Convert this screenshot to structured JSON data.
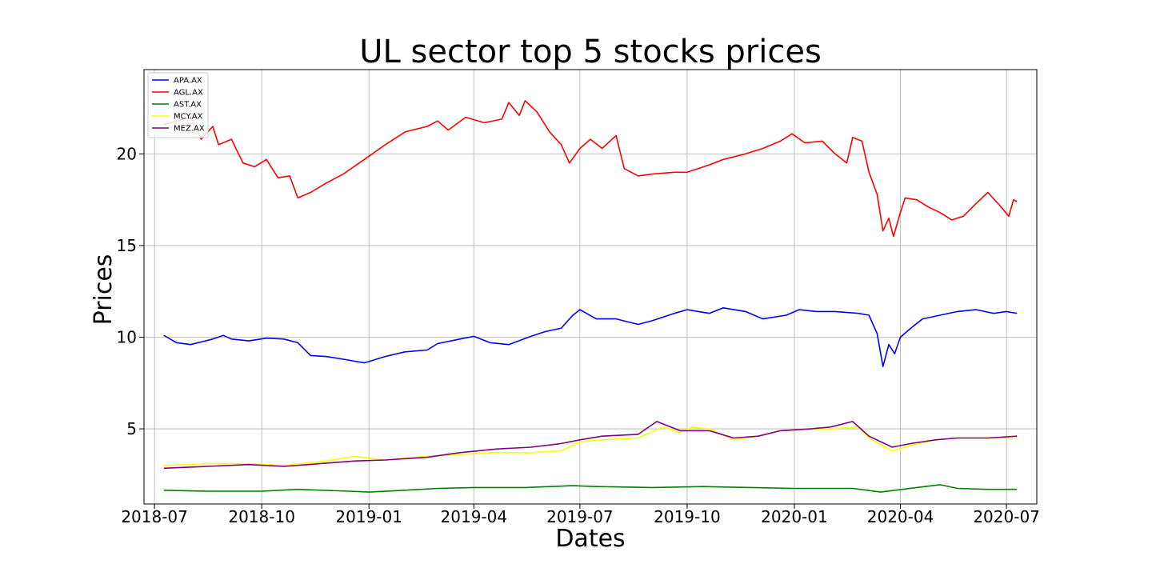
{
  "chart_data": {
    "type": "line",
    "title": "UL sector top 5 stocks prices",
    "xlabel": "Dates",
    "ylabel": "Prices",
    "xlim": [
      "2018-06-22",
      "2020-07-27"
    ],
    "ylim": [
      0.9,
      24.6
    ],
    "grid": true,
    "legend_position": "top-left",
    "x_ticks": [
      "2018-07",
      "2018-10",
      "2019-01",
      "2019-04",
      "2019-07",
      "2019-10",
      "2020-01",
      "2020-04",
      "2020-07"
    ],
    "y_ticks": [
      "5",
      "10",
      "15",
      "20"
    ],
    "series": [
      {
        "name": "APA.AX",
        "color": "#0000ff",
        "points": [
          [
            "2018-07-09",
            10.1
          ],
          [
            "2018-07-20",
            9.7
          ],
          [
            "2018-08-01",
            9.6
          ],
          [
            "2018-08-20",
            9.9
          ],
          [
            "2018-08-29",
            10.1
          ],
          [
            "2018-09-05",
            9.9
          ],
          [
            "2018-09-20",
            9.8
          ],
          [
            "2018-10-05",
            9.95
          ],
          [
            "2018-10-20",
            9.9
          ],
          [
            "2018-11-01",
            9.7
          ],
          [
            "2018-11-12",
            9.0
          ],
          [
            "2018-11-25",
            8.95
          ],
          [
            "2018-12-10",
            8.8
          ],
          [
            "2018-12-28",
            8.6
          ],
          [
            "2019-01-15",
            8.95
          ],
          [
            "2019-02-01",
            9.2
          ],
          [
            "2019-02-20",
            9.3
          ],
          [
            "2019-03-01",
            9.65
          ],
          [
            "2019-03-20",
            9.9
          ],
          [
            "2019-04-01",
            10.05
          ],
          [
            "2019-04-15",
            9.7
          ],
          [
            "2019-05-01",
            9.6
          ],
          [
            "2019-05-20",
            10.05
          ],
          [
            "2019-06-01",
            10.3
          ],
          [
            "2019-06-15",
            10.5
          ],
          [
            "2019-06-25",
            11.2
          ],
          [
            "2019-07-01",
            11.5
          ],
          [
            "2019-07-15",
            11.0
          ],
          [
            "2019-08-01",
            11.0
          ],
          [
            "2019-08-20",
            10.7
          ],
          [
            "2019-09-01",
            10.9
          ],
          [
            "2019-09-20",
            11.3
          ],
          [
            "2019-10-01",
            11.5
          ],
          [
            "2019-10-20",
            11.3
          ],
          [
            "2019-11-01",
            11.6
          ],
          [
            "2019-11-20",
            11.4
          ],
          [
            "2019-12-05",
            11.0
          ],
          [
            "2019-12-25",
            11.2
          ],
          [
            "2020-01-05",
            11.5
          ],
          [
            "2020-01-20",
            11.4
          ],
          [
            "2020-02-05",
            11.4
          ],
          [
            "2020-02-25",
            11.3
          ],
          [
            "2020-03-05",
            11.2
          ],
          [
            "2020-03-12",
            10.2
          ],
          [
            "2020-03-17",
            8.4
          ],
          [
            "2020-03-22",
            9.6
          ],
          [
            "2020-03-27",
            9.1
          ],
          [
            "2020-04-01",
            10.0
          ],
          [
            "2020-04-10",
            10.5
          ],
          [
            "2020-04-20",
            11.0
          ],
          [
            "2020-05-05",
            11.2
          ],
          [
            "2020-05-20",
            11.4
          ],
          [
            "2020-06-05",
            11.5
          ],
          [
            "2020-06-20",
            11.3
          ],
          [
            "2020-07-01",
            11.4
          ],
          [
            "2020-07-10",
            11.3
          ]
        ]
      },
      {
        "name": "AGL.AX",
        "color": "#ff0000",
        "points": [
          [
            "2018-07-09",
            21.6
          ],
          [
            "2018-07-20",
            21.8
          ],
          [
            "2018-08-01",
            22.0
          ],
          [
            "2018-08-10",
            20.8
          ],
          [
            "2018-08-20",
            21.5
          ],
          [
            "2018-08-25",
            20.5
          ],
          [
            "2018-09-05",
            20.8
          ],
          [
            "2018-09-15",
            19.5
          ],
          [
            "2018-09-25",
            19.3
          ],
          [
            "2018-10-05",
            19.7
          ],
          [
            "2018-10-15",
            18.7
          ],
          [
            "2018-10-25",
            18.8
          ],
          [
            "2018-11-01",
            17.6
          ],
          [
            "2018-11-12",
            17.9
          ],
          [
            "2018-11-25",
            18.4
          ],
          [
            "2018-12-10",
            18.9
          ],
          [
            "2018-12-28",
            19.7
          ],
          [
            "2019-01-15",
            20.5
          ],
          [
            "2019-02-01",
            21.2
          ],
          [
            "2019-02-20",
            21.5
          ],
          [
            "2019-03-01",
            21.8
          ],
          [
            "2019-03-10",
            21.3
          ],
          [
            "2019-03-25",
            22.0
          ],
          [
            "2019-04-10",
            21.7
          ],
          [
            "2019-04-25",
            21.9
          ],
          [
            "2019-05-01",
            22.8
          ],
          [
            "2019-05-10",
            22.1
          ],
          [
            "2019-05-15",
            22.9
          ],
          [
            "2019-05-25",
            22.3
          ],
          [
            "2019-06-05",
            21.2
          ],
          [
            "2019-06-15",
            20.5
          ],
          [
            "2019-06-22",
            19.5
          ],
          [
            "2019-07-01",
            20.3
          ],
          [
            "2019-07-10",
            20.8
          ],
          [
            "2019-07-20",
            20.3
          ],
          [
            "2019-08-01",
            21.0
          ],
          [
            "2019-08-08",
            19.2
          ],
          [
            "2019-08-20",
            18.8
          ],
          [
            "2019-09-01",
            18.9
          ],
          [
            "2019-09-20",
            19.0
          ],
          [
            "2019-10-01",
            19.0
          ],
          [
            "2019-10-20",
            19.4
          ],
          [
            "2019-11-01",
            19.7
          ],
          [
            "2019-11-20",
            20.0
          ],
          [
            "2019-12-05",
            20.3
          ],
          [
            "2019-12-20",
            20.7
          ],
          [
            "2019-12-30",
            21.1
          ],
          [
            "2020-01-10",
            20.6
          ],
          [
            "2020-01-25",
            20.7
          ],
          [
            "2020-02-05",
            20.0
          ],
          [
            "2020-02-15",
            19.5
          ],
          [
            "2020-02-20",
            20.9
          ],
          [
            "2020-02-28",
            20.7
          ],
          [
            "2020-03-05",
            19.0
          ],
          [
            "2020-03-12",
            17.8
          ],
          [
            "2020-03-17",
            15.8
          ],
          [
            "2020-03-22",
            16.5
          ],
          [
            "2020-03-26",
            15.5
          ],
          [
            "2020-04-01",
            16.8
          ],
          [
            "2020-04-05",
            17.6
          ],
          [
            "2020-04-15",
            17.5
          ],
          [
            "2020-04-25",
            17.1
          ],
          [
            "2020-05-05",
            16.8
          ],
          [
            "2020-05-15",
            16.4
          ],
          [
            "2020-05-25",
            16.6
          ],
          [
            "2020-06-05",
            17.3
          ],
          [
            "2020-06-15",
            17.9
          ],
          [
            "2020-06-25",
            17.2
          ],
          [
            "2020-07-03",
            16.6
          ],
          [
            "2020-07-07",
            17.5
          ],
          [
            "2020-07-10",
            17.4
          ]
        ]
      },
      {
        "name": "AST.AX",
        "color": "#008000",
        "points": [
          [
            "2018-07-09",
            1.65
          ],
          [
            "2018-08-15",
            1.6
          ],
          [
            "2018-10-01",
            1.6
          ],
          [
            "2018-11-01",
            1.7
          ],
          [
            "2018-12-15",
            1.6
          ],
          [
            "2019-01-01",
            1.55
          ],
          [
            "2019-02-01",
            1.65
          ],
          [
            "2019-03-01",
            1.75
          ],
          [
            "2019-04-01",
            1.8
          ],
          [
            "2019-05-15",
            1.8
          ],
          [
            "2019-06-25",
            1.9
          ],
          [
            "2019-07-15",
            1.85
          ],
          [
            "2019-09-01",
            1.8
          ],
          [
            "2019-10-15",
            1.85
          ],
          [
            "2019-11-25",
            1.8
          ],
          [
            "2020-01-01",
            1.75
          ],
          [
            "2020-02-20",
            1.75
          ],
          [
            "2020-03-15",
            1.55
          ],
          [
            "2020-04-15",
            1.8
          ],
          [
            "2020-05-05",
            1.95
          ],
          [
            "2020-05-20",
            1.75
          ],
          [
            "2020-06-15",
            1.7
          ],
          [
            "2020-07-10",
            1.7
          ]
        ]
      },
      {
        "name": "MCY.AX",
        "color": "#ffff00",
        "points": [
          [
            "2018-07-09",
            3.0
          ],
          [
            "2018-08-15",
            3.1
          ],
          [
            "2018-09-20",
            3.1
          ],
          [
            "2018-10-20",
            3.0
          ],
          [
            "2018-11-20",
            3.2
          ],
          [
            "2018-12-20",
            3.5
          ],
          [
            "2019-01-15",
            3.3
          ],
          [
            "2019-02-20",
            3.5
          ],
          [
            "2019-03-20",
            3.6
          ],
          [
            "2019-04-20",
            3.7
          ],
          [
            "2019-05-20",
            3.7
          ],
          [
            "2019-06-15",
            3.8
          ],
          [
            "2019-07-01",
            4.3
          ],
          [
            "2019-07-20",
            4.4
          ],
          [
            "2019-08-20",
            4.5
          ],
          [
            "2019-09-10",
            5.1
          ],
          [
            "2019-09-25",
            4.8
          ],
          [
            "2019-10-05",
            5.1
          ],
          [
            "2019-10-20",
            5.0
          ],
          [
            "2019-11-10",
            4.4
          ],
          [
            "2019-12-01",
            4.6
          ],
          [
            "2019-12-20",
            4.9
          ],
          [
            "2020-01-15",
            5.0
          ],
          [
            "2020-02-01",
            5.0
          ],
          [
            "2020-02-25",
            5.1
          ],
          [
            "2020-03-05",
            4.5
          ],
          [
            "2020-03-25",
            3.8
          ],
          [
            "2020-04-10",
            4.1
          ],
          [
            "2020-05-01",
            4.4
          ],
          [
            "2020-05-20",
            4.5
          ],
          [
            "2020-06-15",
            4.5
          ],
          [
            "2020-07-10",
            4.5
          ]
        ]
      },
      {
        "name": "MEZ.AX",
        "color": "#800080",
        "points": [
          [
            "2018-07-09",
            2.85
          ],
          [
            "2018-08-15",
            2.95
          ],
          [
            "2018-09-20",
            3.05
          ],
          [
            "2018-10-20",
            2.95
          ],
          [
            "2018-11-20",
            3.1
          ],
          [
            "2018-12-20",
            3.25
          ],
          [
            "2019-01-15",
            3.3
          ],
          [
            "2019-02-20",
            3.45
          ],
          [
            "2019-03-20",
            3.7
          ],
          [
            "2019-04-20",
            3.9
          ],
          [
            "2019-05-20",
            4.0
          ],
          [
            "2019-06-15",
            4.2
          ],
          [
            "2019-07-01",
            4.4
          ],
          [
            "2019-07-20",
            4.6
          ],
          [
            "2019-08-20",
            4.7
          ],
          [
            "2019-09-05",
            5.4
          ],
          [
            "2019-09-25",
            4.9
          ],
          [
            "2019-10-20",
            4.9
          ],
          [
            "2019-11-10",
            4.5
          ],
          [
            "2019-12-01",
            4.6
          ],
          [
            "2019-12-20",
            4.9
          ],
          [
            "2020-01-15",
            5.0
          ],
          [
            "2020-02-01",
            5.1
          ],
          [
            "2020-02-20",
            5.4
          ],
          [
            "2020-03-05",
            4.6
          ],
          [
            "2020-03-25",
            4.0
          ],
          [
            "2020-04-10",
            4.2
          ],
          [
            "2020-05-01",
            4.4
          ],
          [
            "2020-05-20",
            4.5
          ],
          [
            "2020-06-15",
            4.5
          ],
          [
            "2020-07-10",
            4.6
          ]
        ]
      }
    ]
  }
}
